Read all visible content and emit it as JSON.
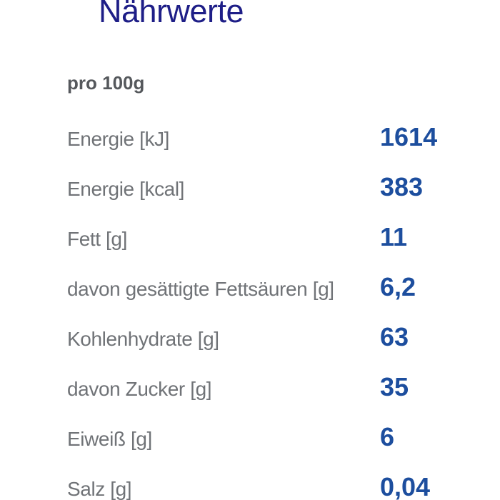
{
  "title": "Nährwerte",
  "subtitle": "pro 100g",
  "colors": {
    "background": "#ffffff",
    "title": "#1e1e87",
    "subtitle": "#55585c",
    "label": "#707377",
    "value": "#1d4e9e"
  },
  "nutrition": {
    "rows": [
      {
        "label": "Energie [kJ]",
        "value": "1614"
      },
      {
        "label": "Energie [kcal]",
        "value": "383"
      },
      {
        "label": "Fett [g]",
        "value": "11"
      },
      {
        "label": "davon gesättigte Fettsäuren [g]",
        "value": "6,2"
      },
      {
        "label": "Kohlenhydrate [g]",
        "value": "63"
      },
      {
        "label": "davon Zucker [g]",
        "value": "35"
      },
      {
        "label": "Eiweiß [g]",
        "value": "6"
      },
      {
        "label": "Salz [g]",
        "value": "0,04"
      }
    ]
  }
}
